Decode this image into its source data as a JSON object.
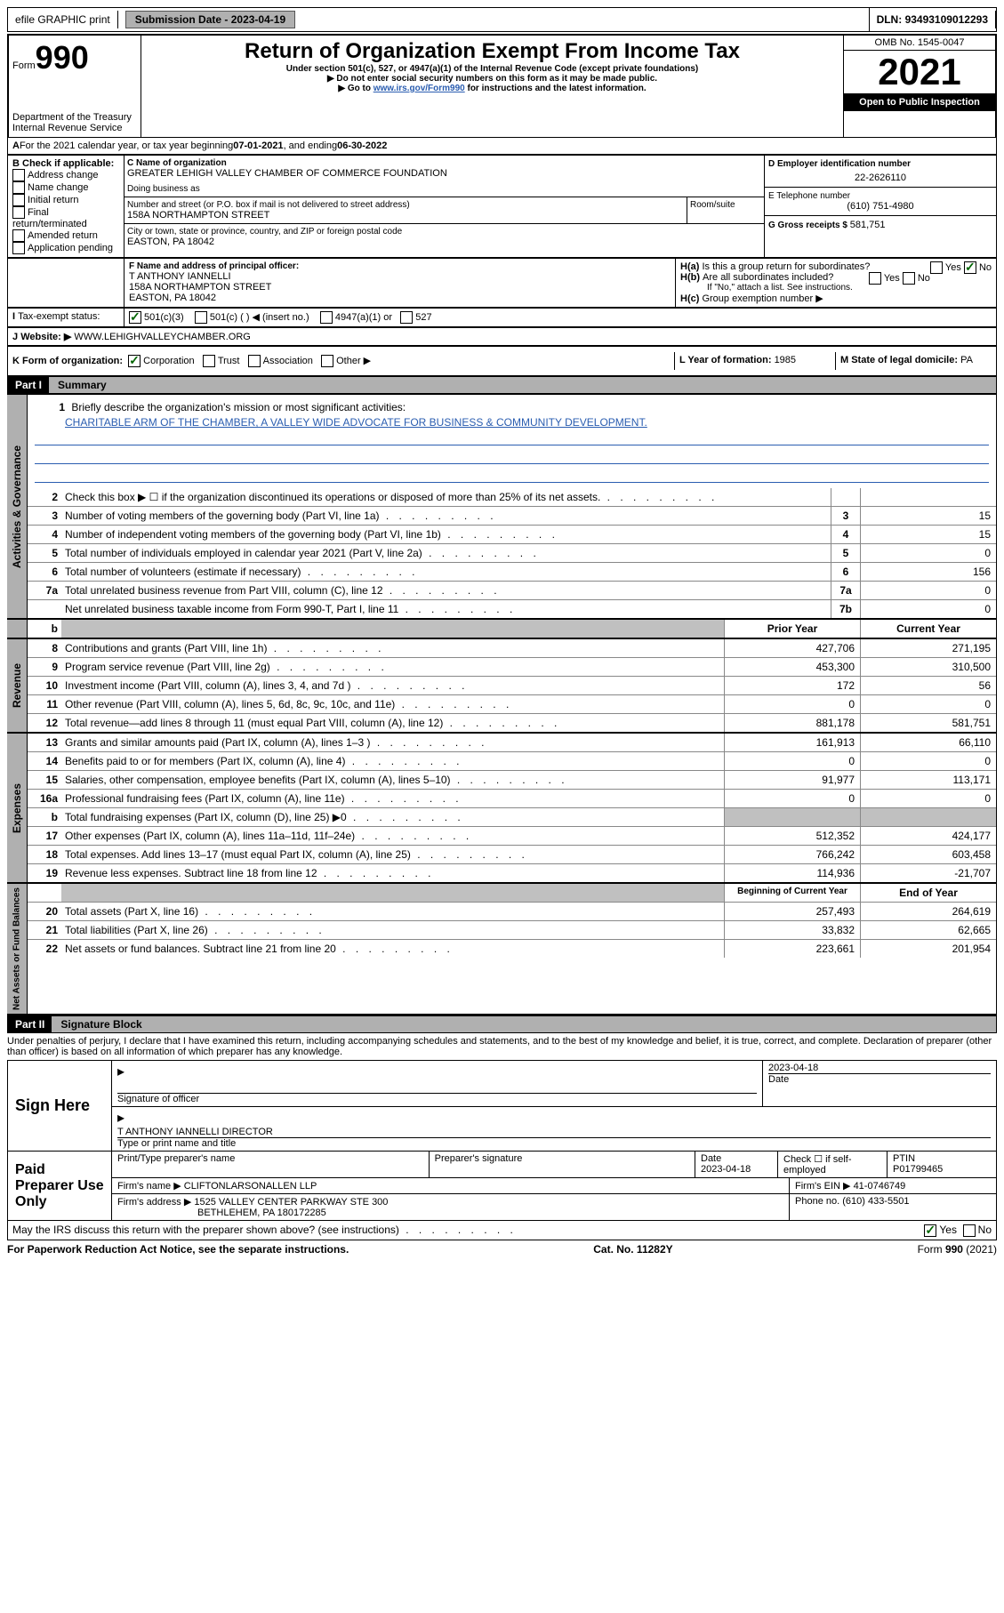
{
  "topbar": {
    "efile": "efile GRAPHIC print",
    "sub_label": "Submission Date - ",
    "sub_date": "2023-04-19",
    "dln_label": "DLN: ",
    "dln": "93493109012293"
  },
  "header": {
    "form_prefix": "Form",
    "form_num": "990",
    "dept": "Department of the Treasury\nInternal Revenue Service",
    "title": "Return of Organization Exempt From Income Tax",
    "subtitle": "Under section 501(c), 527, or 4947(a)(1) of the Internal Revenue Code (except private foundations)",
    "note1": "▶ Do not enter social security numbers on this form as it may be made public.",
    "note2_pre": "▶ Go to ",
    "note2_link": "www.irs.gov/Form990",
    "note2_post": " for instructions and the latest information.",
    "omb": "OMB No. 1545-0047",
    "year": "2021",
    "open": "Open to Public Inspection"
  },
  "A": {
    "text_pre": "For the 2021 calendar year, or tax year beginning ",
    "begin": "07-01-2021",
    "mid": " , and ending ",
    "end": "06-30-2022"
  },
  "B": {
    "label": "B Check if applicable:",
    "items": [
      "Address change",
      "Name change",
      "Initial return",
      "Final return/terminated",
      "Amended return",
      "Application pending"
    ]
  },
  "C": {
    "name_label": "C Name of organization",
    "name": "GREATER LEHIGH VALLEY CHAMBER OF COMMERCE FOUNDATION",
    "dba_label": "Doing business as",
    "street_label": "Number and street (or P.O. box if mail is not delivered to street address)",
    "room_label": "Room/suite",
    "street": "158A NORTHAMPTON STREET",
    "city_label": "City or town, state or province, country, and ZIP or foreign postal code",
    "city": "EASTON, PA  18042"
  },
  "D": {
    "label": "D Employer identification number",
    "val": "22-2626110"
  },
  "E": {
    "label": "E Telephone number",
    "val": "(610) 751-4980"
  },
  "G": {
    "label": "G Gross receipts $ ",
    "val": "581,751"
  },
  "F": {
    "label": "F Name and address of principal officer:",
    "name": "T ANTHONY IANNELLI",
    "street": "158A NORTHAMPTON STREET",
    "city": "EASTON, PA  18042"
  },
  "H": {
    "a": "Is this a group return for subordinates?",
    "b": "Are all subordinates included?",
    "b_note": "If \"No,\" attach a list. See instructions.",
    "c": "Group exemption number ▶"
  },
  "I": {
    "label": "Tax-exempt status:",
    "opts": [
      "501(c)(3)",
      "501(c) (  ) ◀ (insert no.)",
      "4947(a)(1) or",
      "527"
    ]
  },
  "J": {
    "label": "Website: ▶",
    "val": "WWW.LEHIGHVALLEYCHAMBER.ORG"
  },
  "K": {
    "label": "K Form of organization:",
    "opts": [
      "Corporation",
      "Trust",
      "Association",
      "Other ▶"
    ]
  },
  "L": {
    "label": "L Year of formation: ",
    "val": "1985"
  },
  "M": {
    "label": "M State of legal domicile: ",
    "val": "PA"
  },
  "part1": {
    "header": "Part I",
    "title": "Summary"
  },
  "mission": {
    "q": "Briefly describe the organization's mission or most significant activities:",
    "text": "CHARITABLE ARM OF THE CHAMBER, A VALLEY WIDE ADVOCATE FOR BUSINESS & COMMUNITY DEVELOPMENT."
  },
  "gov_lines": [
    {
      "n": "2",
      "desc": "Check this box ▶ ☐  if the organization discontinued its operations or disposed of more than 25% of its net assets.",
      "key": "",
      "val": ""
    },
    {
      "n": "3",
      "desc": "Number of voting members of the governing body (Part VI, line 1a)",
      "key": "3",
      "val": "15"
    },
    {
      "n": "4",
      "desc": "Number of independent voting members of the governing body (Part VI, line 1b)",
      "key": "4",
      "val": "15"
    },
    {
      "n": "5",
      "desc": "Total number of individuals employed in calendar year 2021 (Part V, line 2a)",
      "key": "5",
      "val": "0"
    },
    {
      "n": "6",
      "desc": "Total number of volunteers (estimate if necessary)",
      "key": "6",
      "val": "156"
    },
    {
      "n": "7a",
      "desc": "Total unrelated business revenue from Part VIII, column (C), line 12",
      "key": "7a",
      "val": "0"
    },
    {
      "n": "",
      "desc": "Net unrelated business taxable income from Form 990-T, Part I, line 11",
      "key": "7b",
      "val": "0"
    }
  ],
  "two_col_head": {
    "b": "b",
    "prior": "Prior Year",
    "current": "Current Year"
  },
  "revenue": [
    {
      "n": "8",
      "desc": "Contributions and grants (Part VIII, line 1h)",
      "p": "427,706",
      "c": "271,195"
    },
    {
      "n": "9",
      "desc": "Program service revenue (Part VIII, line 2g)",
      "p": "453,300",
      "c": "310,500"
    },
    {
      "n": "10",
      "desc": "Investment income (Part VIII, column (A), lines 3, 4, and 7d )",
      "p": "172",
      "c": "56"
    },
    {
      "n": "11",
      "desc": "Other revenue (Part VIII, column (A), lines 5, 6d, 8c, 9c, 10c, and 11e)",
      "p": "0",
      "c": "0"
    },
    {
      "n": "12",
      "desc": "Total revenue—add lines 8 through 11 (must equal Part VIII, column (A), line 12)",
      "p": "881,178",
      "c": "581,751"
    }
  ],
  "expenses": [
    {
      "n": "13",
      "desc": "Grants and similar amounts paid (Part IX, column (A), lines 1–3 )",
      "p": "161,913",
      "c": "66,110"
    },
    {
      "n": "14",
      "desc": "Benefits paid to or for members (Part IX, column (A), line 4)",
      "p": "0",
      "c": "0"
    },
    {
      "n": "15",
      "desc": "Salaries, other compensation, employee benefits (Part IX, column (A), lines 5–10)",
      "p": "91,977",
      "c": "113,171"
    },
    {
      "n": "16a",
      "desc": "Professional fundraising fees (Part IX, column (A), line 11e)",
      "p": "0",
      "c": "0"
    },
    {
      "n": "b",
      "desc": "Total fundraising expenses (Part IX, column (D), line 25) ▶0",
      "p": "",
      "c": "",
      "grey": true
    },
    {
      "n": "17",
      "desc": "Other expenses (Part IX, column (A), lines 11a–11d, 11f–24e)",
      "p": "512,352",
      "c": "424,177"
    },
    {
      "n": "18",
      "desc": "Total expenses. Add lines 13–17 (must equal Part IX, column (A), line 25)",
      "p": "766,242",
      "c": "603,458"
    },
    {
      "n": "19",
      "desc": "Revenue less expenses. Subtract line 18 from line 12",
      "p": "114,936",
      "c": "-21,707"
    }
  ],
  "net_head": {
    "beg": "Beginning of Current Year",
    "end": "End of Year"
  },
  "net": [
    {
      "n": "20",
      "desc": "Total assets (Part X, line 16)",
      "p": "257,493",
      "c": "264,619"
    },
    {
      "n": "21",
      "desc": "Total liabilities (Part X, line 26)",
      "p": "33,832",
      "c": "62,665"
    },
    {
      "n": "22",
      "desc": "Net assets or fund balances. Subtract line 21 from line 20",
      "p": "223,661",
      "c": "201,954"
    }
  ],
  "part2": {
    "header": "Part II",
    "title": "Signature Block"
  },
  "perjury": "Under penalties of perjury, I declare that I have examined this return, including accompanying schedules and statements, and to the best of my knowledge and belief, it is true, correct, and complete. Declaration of preparer (other than officer) is based on all information of which preparer has any knowledge.",
  "sign": {
    "here": "Sign Here",
    "sig_label": "Signature of officer",
    "date_label": "Date",
    "date": "2023-04-18",
    "name": "T ANTHONY IANNELLI DIRECTOR",
    "name_label": "Type or print name and title"
  },
  "paid": {
    "label": "Paid Preparer Use Only",
    "h1": "Print/Type preparer's name",
    "h2": "Preparer's signature",
    "h3": "Date",
    "date": "2023-04-18",
    "h4": "Check ☐ if self-employed",
    "h5": "PTIN",
    "ptin": "P01799465",
    "firm_name_l": "Firm's name     ▶",
    "firm_name": "CLIFTONLARSONALLEN LLP",
    "firm_ein_l": "Firm's EIN ▶",
    "firm_ein": "41-0746749",
    "firm_addr_l": "Firm's address ▶",
    "firm_addr1": "1525 VALLEY CENTER PARKWAY STE 300",
    "firm_addr2": "BETHLEHEM, PA  180172285",
    "phone_l": "Phone no. ",
    "phone": "(610) 433-5501"
  },
  "may_discuss": "May the IRS discuss this return with the preparer shown above? (see instructions)",
  "footer": {
    "left": "For Paperwork Reduction Act Notice, see the separate instructions.",
    "mid": "Cat. No. 11282Y",
    "right": "Form 990 (2021)"
  },
  "tabs": {
    "gov": "Activities & Governance",
    "rev": "Revenue",
    "exp": "Expenses",
    "net": "Net Assets or Fund Balances"
  }
}
